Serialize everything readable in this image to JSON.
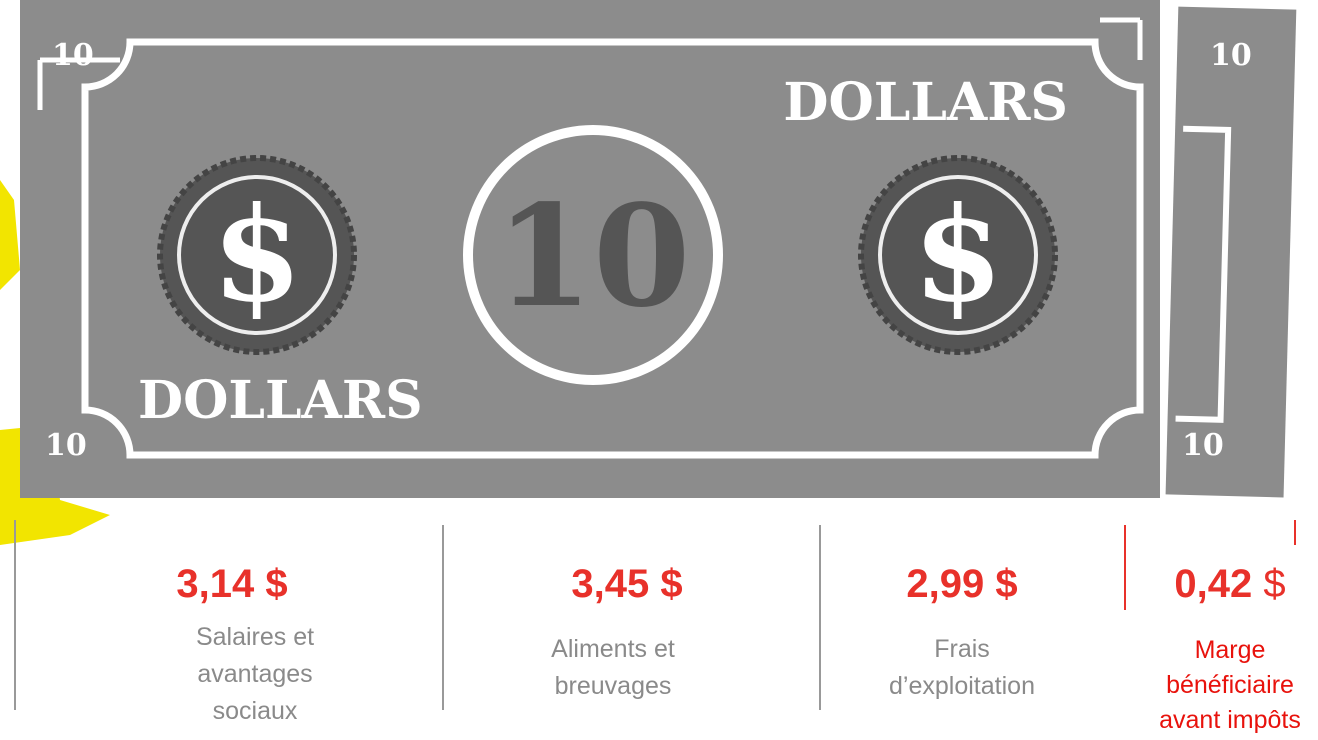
{
  "bill": {
    "corners": [
      "10",
      "10"
    ],
    "denomination": "10",
    "words": [
      "DOLLARS",
      "DOLLARS"
    ],
    "symbols": [
      "$",
      "$"
    ]
  },
  "slice": {
    "corners": [
      "10",
      "10"
    ]
  },
  "items": [
    {
      "amount": "3,14",
      "unit": "$",
      "label": [
        "Salaires et",
        "avantages",
        "sociaux"
      ]
    },
    {
      "amount": "3,45",
      "unit": "$",
      "label": [
        "Aliments et",
        "breuvages"
      ]
    },
    {
      "amount": "2,99",
      "unit": "$",
      "label": [
        "Frais",
        "d’exploitation"
      ]
    },
    {
      "amount": "0,42",
      "unit": "$",
      "label": [
        "Marge",
        "bénéficiaire",
        "avant impôts"
      ]
    }
  ]
}
